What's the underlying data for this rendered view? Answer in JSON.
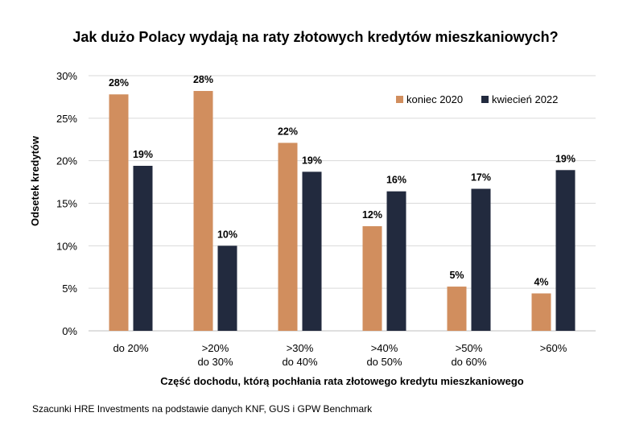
{
  "chart_data": {
    "type": "bar",
    "title": "Jak dużo Polacy wydają na raty złotowych kredytów mieszkaniowych?",
    "xlabel": "Część dochodu, którą pochłania rata złotowego kredytu mieszkaniowego",
    "ylabel": "Odsetek kredytów",
    "ylim": [
      0,
      30
    ],
    "yticks": [
      "0%",
      "5%",
      "10%",
      "15%",
      "20%",
      "25%",
      "30%"
    ],
    "categories": [
      [
        "do 20%"
      ],
      [
        ">20%",
        "do 30%"
      ],
      [
        ">30%",
        "do 40%"
      ],
      [
        ">40%",
        "do 50%"
      ],
      [
        ">50%",
        "do 60%"
      ],
      [
        ">60%"
      ]
    ],
    "series": [
      {
        "name": "koniec 2020",
        "color": "#D18E5E",
        "values": [
          27.8,
          28.2,
          22.1,
          12.3,
          5.2,
          4.4
        ],
        "labels": [
          "28%",
          "28%",
          "22%",
          "12%",
          "5%",
          "4%"
        ]
      },
      {
        "name": "kwiecień 2022",
        "color": "#222A3E",
        "values": [
          19.4,
          10.0,
          18.7,
          16.4,
          16.7,
          18.9
        ],
        "labels": [
          "19%",
          "10%",
          "19%",
          "16%",
          "17%",
          "19%"
        ]
      }
    ],
    "legend": "top-right",
    "grid": true,
    "source": "Szacunki HRE Investments na podstawie danych KNF, GUS i GPW Benchmark"
  }
}
